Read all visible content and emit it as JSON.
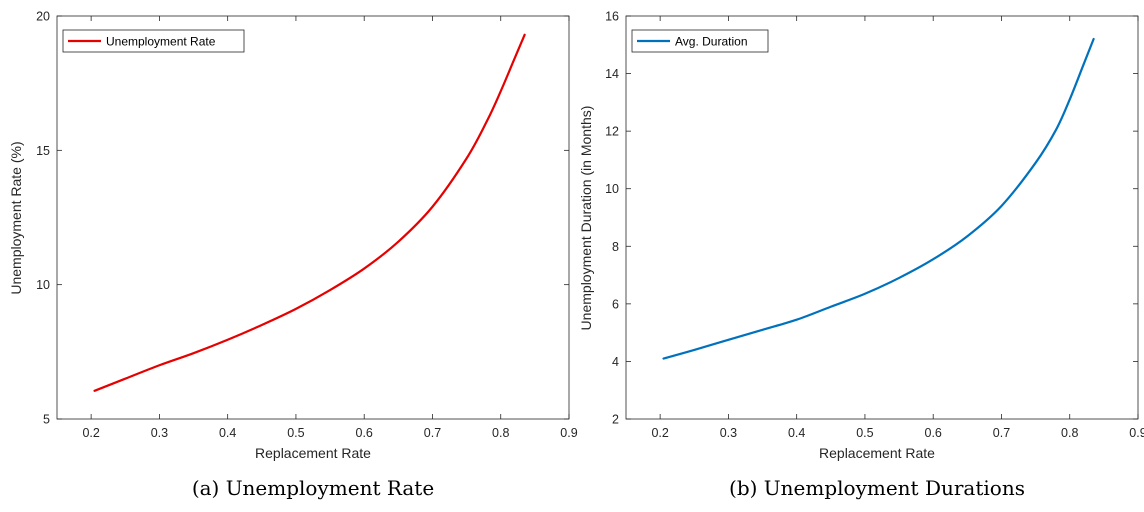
{
  "chart_data": [
    {
      "type": "line",
      "title": "",
      "caption": "(a) Unemployment Rate",
      "xlabel": "Replacement Rate",
      "ylabel": "Unemployment Rate (%)",
      "xlim": [
        0.15,
        0.9
      ],
      "ylim": [
        5,
        20
      ],
      "xticks": [
        0.2,
        0.3,
        0.4,
        0.5,
        0.6,
        0.7,
        0.8,
        0.9
      ],
      "xtick_labels": [
        "0.2",
        "0.3",
        "0.4",
        "0.5",
        "0.6",
        "0.7",
        "0.8",
        "0.9"
      ],
      "yticks": [
        5,
        10,
        15,
        20
      ],
      "ytick_labels": [
        "5",
        "10",
        "15",
        "20"
      ],
      "grid": false,
      "legend_position": "top-left",
      "series": [
        {
          "name": "Unemployment Rate",
          "color": "#e60000",
          "x": [
            0.205,
            0.25,
            0.3,
            0.35,
            0.4,
            0.45,
            0.5,
            0.55,
            0.6,
            0.65,
            0.7,
            0.75,
            0.78,
            0.8,
            0.82,
            0.835
          ],
          "y": [
            6.05,
            6.5,
            7.0,
            7.45,
            7.95,
            8.5,
            9.1,
            9.8,
            10.6,
            11.6,
            12.9,
            14.7,
            16.1,
            17.2,
            18.4,
            19.3
          ]
        }
      ]
    },
    {
      "type": "line",
      "title": "",
      "caption": "(b) Unemployment Durations",
      "xlabel": "Replacement Rate",
      "ylabel": "Unemployment Duration (in Months)",
      "xlim": [
        0.15,
        0.9
      ],
      "ylim": [
        2,
        16
      ],
      "xticks": [
        0.2,
        0.3,
        0.4,
        0.5,
        0.6,
        0.7,
        0.8,
        0.9
      ],
      "xtick_labels": [
        "0.2",
        "0.3",
        "0.4",
        "0.5",
        "0.6",
        "0.7",
        "0.8",
        "0.9"
      ],
      "yticks": [
        2,
        4,
        6,
        8,
        10,
        12,
        14,
        16
      ],
      "ytick_labels": [
        "2",
        "4",
        "6",
        "8",
        "10",
        "12",
        "14",
        "16"
      ],
      "grid": false,
      "legend_position": "top-left",
      "series": [
        {
          "name": "Avg. Duration",
          "color": "#0072bd",
          "x": [
            0.205,
            0.25,
            0.3,
            0.35,
            0.4,
            0.45,
            0.5,
            0.55,
            0.6,
            0.65,
            0.7,
            0.75,
            0.78,
            0.8,
            0.82,
            0.835
          ],
          "y": [
            4.1,
            4.4,
            4.75,
            5.1,
            5.45,
            5.9,
            6.35,
            6.9,
            7.55,
            8.35,
            9.4,
            10.9,
            12.05,
            13.1,
            14.3,
            15.2
          ]
        }
      ]
    }
  ]
}
